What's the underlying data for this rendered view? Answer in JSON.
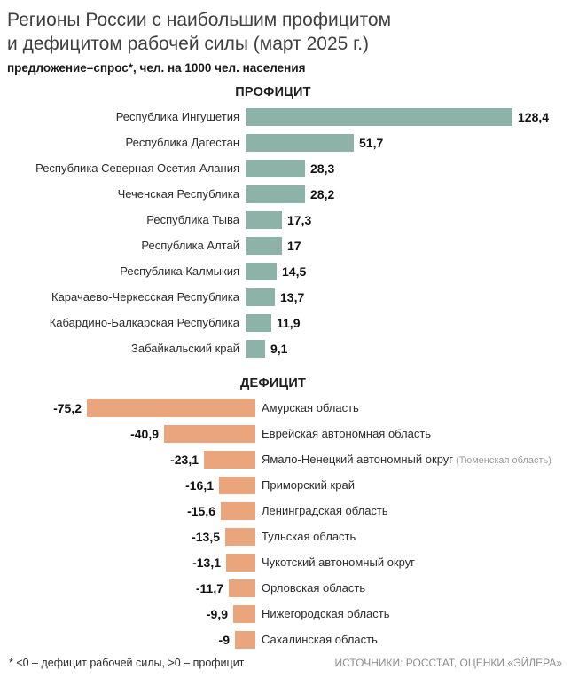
{
  "header": {
    "title_line1": "Регионы России с наибольшим профицитом",
    "title_line2": "и дефицитом рабочей силы (март 2025 г.)",
    "subtitle": "предложение–спрос*, чел. на 1000 чел. населения"
  },
  "chart_data": [
    {
      "type": "bar",
      "title": "ПРОФИЦИТ",
      "direction": "right",
      "bar_color": "#8db3a9",
      "xlabel": "чел. на 1000 чел. населения",
      "xlim": [
        0,
        130
      ],
      "categories": [
        "Республика Ингушетия",
        "Республика Дагестан",
        "Республика Северная Осетия-Алания",
        "Чеченская Республика",
        "Республика Тыва",
        "Республика Алтай",
        "Республика Калмыкия",
        "Карачаево-Черкесская Республика",
        "Кабардино-Балкарская Республика",
        "Забайкальский край"
      ],
      "category_notes": [
        "",
        "",
        "",
        "",
        "",
        "",
        "",
        "",
        "",
        ""
      ],
      "values": [
        128.4,
        51.7,
        28.3,
        28.2,
        17.3,
        17,
        14.5,
        13.7,
        11.9,
        9.1
      ],
      "value_labels": [
        "128,4",
        "51,7",
        "28,3",
        "28,2",
        "17,3",
        "17",
        "14,5",
        "13,7",
        "11,9",
        "9,1"
      ]
    },
    {
      "type": "bar",
      "title": "ДЕФИЦИТ",
      "direction": "left",
      "bar_color": "#eaa57c",
      "xlabel": "чел. на 1000 чел. населения",
      "xlim": [
        -80,
        0
      ],
      "categories": [
        "Амурская область",
        "Еврейская автономная область",
        "Ямало-Ненецкий автономный округ",
        "Приморский край",
        "Ленинградская область",
        "Тульская область",
        "Чукотский автономный округ",
        "Орловская область",
        "Нижегородская область",
        "Сахалинская область"
      ],
      "category_notes": [
        "",
        "",
        "(Тюменская область)",
        "",
        "",
        "",
        "",
        "",
        "",
        ""
      ],
      "values": [
        -75.2,
        -40.9,
        -23.1,
        -16.1,
        -15.6,
        -13.5,
        -13.1,
        -11.7,
        -9.9,
        -9
      ],
      "value_labels": [
        "-75,2",
        "-40,9",
        "-23,1",
        "-16,1",
        "-15,6",
        "-13,5",
        "-13,1",
        "-11,7",
        "-9,9",
        "-9"
      ]
    }
  ],
  "footer": {
    "note": "* <0 – дефицит рабочей силы, >0 – профицит",
    "sources": "ИСТОЧНИКИ: РОССТАТ, ОЦЕНКИ «ЭЙЛЕРА»"
  }
}
